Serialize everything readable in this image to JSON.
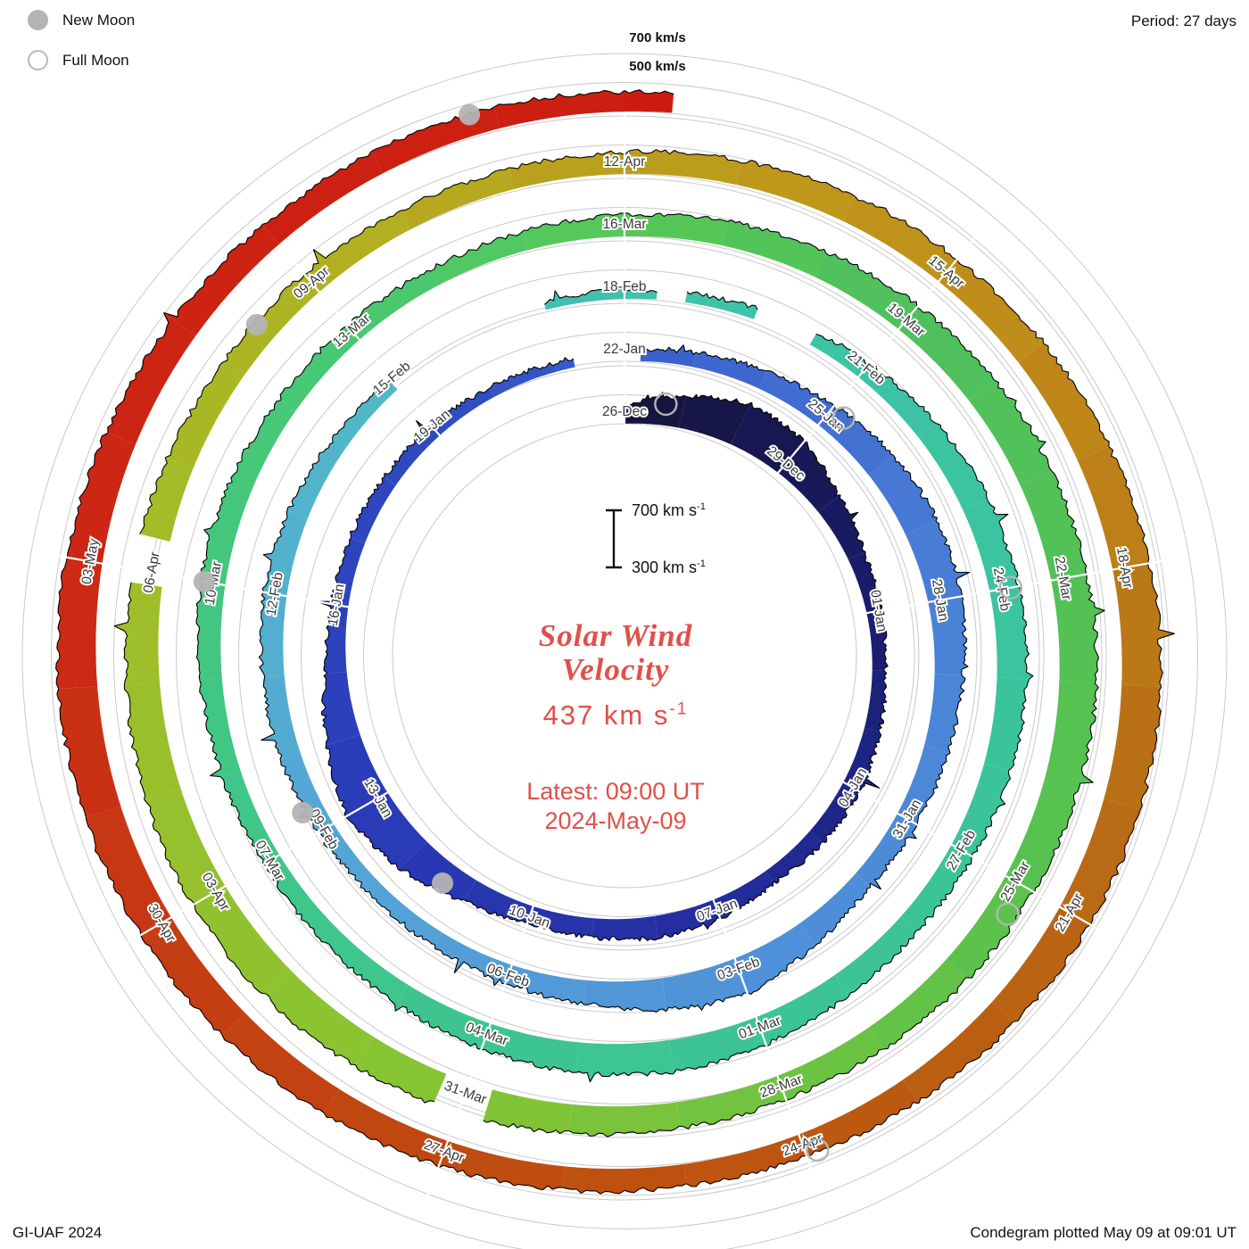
{
  "legend": {
    "new_moon": "New Moon",
    "full_moon": "Full Moon"
  },
  "header": {
    "period": "Period: 27 days"
  },
  "footer": {
    "credit": "GI-UAF 2024",
    "plotted": "Condegram plotted May 09 at 09:01 UT"
  },
  "outer_scale": {
    "top_label": "700 km/s",
    "bottom_label": "500 km/s"
  },
  "scalebar": {
    "top_text": "700 km s",
    "bottom_text": "300 km s",
    "sup": "-1"
  },
  "center": {
    "title_line1": "Solar Wind",
    "title_line2": "Velocity",
    "value_text": "437 km s",
    "value_sup": "-1",
    "latest": "Latest: 09:00 UT",
    "date": "2024-May-09",
    "accent_color": "#e0504a"
  },
  "chart_data": {
    "type": "area",
    "variant": "spiral_condegram",
    "title": "Solar Wind Velocity",
    "latest_value_kms": 437,
    "latest_time": "09:00 UT 2024-May-09",
    "period_days": 27,
    "label_interval_days": 3,
    "rotation": "clockwise, time increases outward, 27 days per revolution, start at top",
    "radial_scale_kms": [
      300,
      700
    ],
    "vmin": 300,
    "vmax": 700,
    "start_label": "26-Dec",
    "end_day": 135.375,
    "labels": [
      {
        "day": 0,
        "label": "26-Dec"
      },
      {
        "day": 3,
        "label": "29-Dec"
      },
      {
        "day": 6,
        "label": "01-Jan"
      },
      {
        "day": 9,
        "label": "04-Jan"
      },
      {
        "day": 12,
        "label": "07-Jan"
      },
      {
        "day": 15,
        "label": "10-Jan"
      },
      {
        "day": 18,
        "label": "13-Jan"
      },
      {
        "day": 21,
        "label": "16-Jan"
      },
      {
        "day": 24,
        "label": "19-Jan"
      },
      {
        "day": 27,
        "label": "22-Jan"
      },
      {
        "day": 30,
        "label": "25-Jan"
      },
      {
        "day": 33,
        "label": "28-Jan"
      },
      {
        "day": 36,
        "label": "31-Jan"
      },
      {
        "day": 39,
        "label": "03-Feb"
      },
      {
        "day": 42,
        "label": "06-Feb"
      },
      {
        "day": 45,
        "label": "09-Feb"
      },
      {
        "day": 48,
        "label": "12-Feb"
      },
      {
        "day": 51,
        "label": "15-Feb"
      },
      {
        "day": 54,
        "label": "18-Feb"
      },
      {
        "day": 57,
        "label": "21-Feb"
      },
      {
        "day": 60,
        "label": "24-Feb"
      },
      {
        "day": 63,
        "label": "27-Feb"
      },
      {
        "day": 66,
        "label": "01-Mar"
      },
      {
        "day": 69,
        "label": "04-Mar"
      },
      {
        "day": 72,
        "label": "07-Mar"
      },
      {
        "day": 75,
        "label": "10-Mar"
      },
      {
        "day": 78,
        "label": "13-Mar"
      },
      {
        "day": 81,
        "label": "16-Mar"
      },
      {
        "day": 84,
        "label": "19-Mar"
      },
      {
        "day": 87,
        "label": "22-Mar"
      },
      {
        "day": 90,
        "label": "25-Mar"
      },
      {
        "day": 93,
        "label": "28-Mar"
      },
      {
        "day": 96,
        "label": "31-Mar"
      },
      {
        "day": 99,
        "label": "03-Apr"
      },
      {
        "day": 102,
        "label": "06-Apr"
      },
      {
        "day": 105,
        "label": "09-Apr"
      },
      {
        "day": 108,
        "label": "12-Apr"
      },
      {
        "day": 111,
        "label": "15-Apr"
      },
      {
        "day": 114,
        "label": "18-Apr"
      },
      {
        "day": 117,
        "label": "21-Apr"
      },
      {
        "day": 120,
        "label": "24-Apr"
      },
      {
        "day": 123,
        "label": "27-Apr"
      },
      {
        "day": 126,
        "label": "30-Apr"
      },
      {
        "day": 129,
        "label": "03-May"
      }
    ],
    "daily_values_kms": [
      430,
      520,
      610,
      580,
      480,
      420,
      400,
      390,
      410,
      430,
      420,
      400,
      440,
      450,
      430,
      420,
      470,
      560,
      620,
      540,
      450,
      420,
      410,
      400,
      390,
      370,
      360,
      380,
      400,
      430,
      470,
      520,
      540,
      530,
      500,
      470,
      450,
      430,
      480,
      560,
      520,
      460,
      430,
      410,
      400,
      420,
      440,
      450,
      460,
      440,
      410,
      380,
      360,
      355,
      360,
      370,
      380,
      420,
      460,
      490,
      500,
      510,
      490,
      470,
      450,
      470,
      500,
      520,
      510,
      480,
      450,
      430,
      420,
      430,
      450,
      470,
      460,
      440,
      430,
      420,
      430,
      450,
      470,
      490,
      510,
      530,
      540,
      550,
      560,
      540,
      520,
      500,
      480,
      470,
      480,
      500,
      520,
      540,
      550,
      560,
      550,
      530,
      510,
      490,
      470,
      460,
      450,
      440,
      450,
      470,
      490,
      500,
      520,
      540,
      560,
      570,
      560,
      540,
      510,
      480,
      460,
      450,
      460,
      480,
      500,
      520,
      540,
      560,
      570,
      550,
      520,
      490,
      470,
      460,
      450,
      437
    ],
    "gaps_day_ranges": [
      [
        26.3,
        27.2
      ],
      [
        51.0,
        53.0
      ],
      [
        54.4,
        54.7
      ],
      [
        55.6,
        56.3
      ],
      [
        95.8,
        96.2
      ],
      [
        101.9,
        102.3
      ]
    ],
    "color_stops": [
      [
        0,
        "#14143c"
      ],
      [
        6,
        "#1a1d6e"
      ],
      [
        12,
        "#232d9e"
      ],
      [
        18,
        "#2a3cb8"
      ],
      [
        24,
        "#2f4ac0"
      ],
      [
        27,
        "#3a5ecc"
      ],
      [
        33,
        "#4a80d6"
      ],
      [
        39,
        "#4f92d8"
      ],
      [
        45,
        "#55a6d6"
      ],
      [
        51,
        "#50b8c6"
      ],
      [
        54,
        "#3fc2aa"
      ],
      [
        60,
        "#3bc49e"
      ],
      [
        66,
        "#3cc496"
      ],
      [
        72,
        "#3fc68a"
      ],
      [
        78,
        "#48c872"
      ],
      [
        81,
        "#58c856"
      ],
      [
        84,
        "#4ec05e"
      ],
      [
        90,
        "#58c24e"
      ],
      [
        96,
        "#84c434"
      ],
      [
        102,
        "#a0be28"
      ],
      [
        105,
        "#b0b222"
      ],
      [
        108,
        "#bb9e1c"
      ],
      [
        111,
        "#c0901a"
      ],
      [
        114,
        "#bc7c16"
      ],
      [
        117,
        "#b86614"
      ],
      [
        120,
        "#bc5610"
      ],
      [
        123,
        "#c04a10"
      ],
      [
        126,
        "#c63a14"
      ],
      [
        129,
        "#cc2814"
      ],
      [
        135.4,
        "#cc1c10"
      ]
    ],
    "moons": {
      "new_moon_days": [
        16.4,
        45.3,
        75.0,
        104.4,
        133.8
      ],
      "full_moon_days": [
        0.7,
        30.2,
        60.0,
        90.3,
        119.9
      ],
      "marker_color": "#b4b4b4"
    },
    "grid_color": "#c9c9c9"
  }
}
